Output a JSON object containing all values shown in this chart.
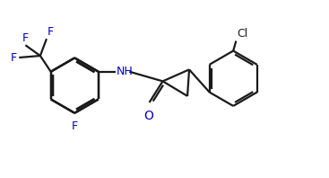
{
  "bg_color": "#ffffff",
  "line_color": "#1a1a1a",
  "F_color": "#0000cd",
  "N_color": "#0000cd",
  "O_color": "#0000cd",
  "Cl_color": "#1a1a1a",
  "lw": 1.6,
  "figsize": [
    3.67,
    1.98
  ],
  "dpi": 100,
  "xlim": [
    0,
    9.2
  ],
  "ylim": [
    0,
    5.0
  ]
}
